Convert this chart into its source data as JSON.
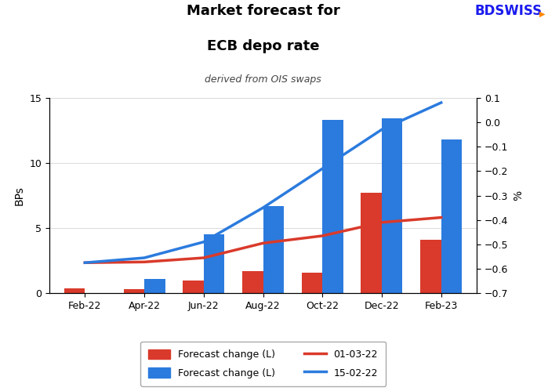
{
  "title_line1": "Market forecast for",
  "title_line2": "ECB depo rate",
  "subtitle": "derived from OIS swaps",
  "ylabel_left": "BPs",
  "ylabel_right": "%",
  "categories": [
    "Feb-22",
    "Apr-22",
    "Jun-22",
    "Aug-22",
    "Oct-22",
    "Dec-22",
    "Feb-23"
  ],
  "bar_red": [
    0.4,
    0.3,
    1.0,
    1.7,
    1.6,
    7.7,
    4.1
  ],
  "bar_blue": [
    0.0,
    1.1,
    4.5,
    6.7,
    13.3,
    13.4,
    11.8
  ],
  "line_red_y": [
    -0.575,
    -0.572,
    -0.555,
    -0.495,
    -0.465,
    -0.41,
    -0.39
  ],
  "line_blue_y": [
    -0.575,
    -0.555,
    -0.49,
    -0.35,
    -0.19,
    -0.03,
    0.08
  ],
  "ylim_left": [
    0,
    15
  ],
  "ylim_right": [
    -0.7,
    0.1
  ],
  "bar_color_red": "#d93a2b",
  "bar_color_blue": "#2b7bde",
  "line_color_red": "#d93a2b",
  "line_color_blue": "#2b7bde",
  "bg_color": "#ffffff",
  "legend_labels": [
    "Forecast change (L)",
    "Forecast change (L)",
    "01-03-22",
    "15-02-22"
  ],
  "logo_text": "BDSWISS",
  "logo_color": "#1a1aee",
  "bar_width": 0.35,
  "yticks_left": [
    0,
    5,
    10,
    15
  ],
  "yticks_right": [
    -0.7,
    -0.6,
    -0.5,
    -0.4,
    -0.3,
    -0.2,
    -0.1,
    0.0,
    0.1
  ]
}
